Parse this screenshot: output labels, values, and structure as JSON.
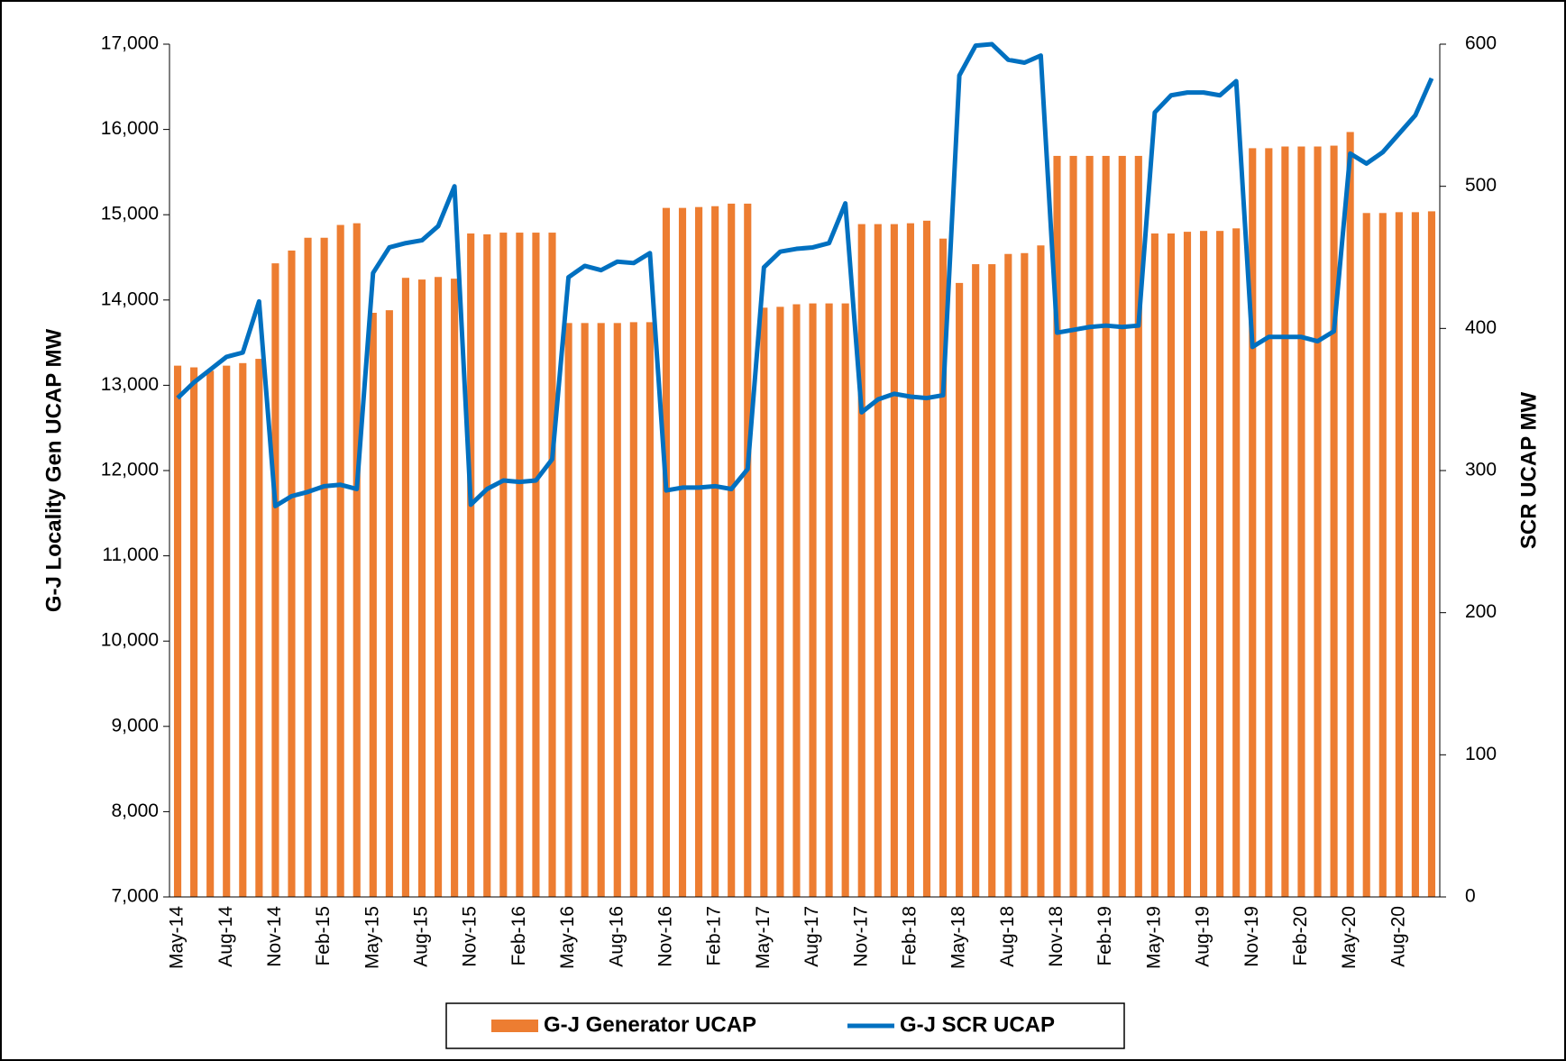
{
  "chart_data": {
    "type": "bar-line",
    "y_label": "G-J Locality Gen UCAP MW",
    "y2_label": "SCR UCAP MW",
    "categories": [
      "May-14",
      null,
      null,
      "Aug-14",
      null,
      null,
      "Nov-14",
      null,
      null,
      "Feb-15",
      null,
      null,
      "May-15",
      null,
      null,
      "Aug-15",
      null,
      null,
      "Nov-15",
      null,
      null,
      "Feb-16",
      null,
      null,
      "May-16",
      null,
      null,
      "Aug-16",
      null,
      null,
      "Nov-16",
      null,
      null,
      "Feb-17",
      null,
      null,
      "May-17",
      null,
      null,
      "Aug-17",
      null,
      null,
      "Nov-17",
      null,
      null,
      "Feb-18",
      null,
      null,
      "May-18",
      null,
      null,
      "Aug-18",
      null,
      null,
      "Nov-18",
      null,
      null,
      "Feb-19",
      null,
      null,
      "May-19",
      null,
      null,
      "Aug-19",
      null,
      null,
      "Nov-19",
      null,
      null,
      "Feb-20",
      null,
      null,
      "May-20",
      null,
      null,
      "Aug-20",
      null,
      null
    ],
    "series": [
      {
        "name": "G-J Generator UCAP",
        "type": "bar",
        "color": "#ED7D31",
        "values": [
          13230,
          13210,
          13170,
          13230,
          13260,
          13310,
          14430,
          14580,
          14730,
          14730,
          14880,
          14900,
          13850,
          13880,
          14260,
          14240,
          14270,
          14250,
          14780,
          14770,
          14790,
          14790,
          14790,
          14790,
          13730,
          13730,
          13730,
          13730,
          13740,
          13740,
          15080,
          15080,
          15090,
          15100,
          15130,
          15130,
          13910,
          13920,
          13950,
          13960,
          13960,
          13960,
          14890,
          14890,
          14890,
          14900,
          14930,
          14720,
          14200,
          14420,
          14420,
          14540,
          14550,
          14640,
          15690,
          15690,
          15690,
          15690,
          15690,
          15690,
          14780,
          14780,
          14800,
          14810,
          14810,
          14840,
          15780,
          15780,
          15800,
          15800,
          15800,
          15810,
          15970,
          15020,
          15020,
          15030,
          15030,
          15040
        ]
      },
      {
        "name": "G-J SCR UCAP",
        "type": "line",
        "axis": "y2",
        "color": "#0070C0",
        "values": [
          351,
          362,
          371,
          380,
          383,
          419,
          275,
          282,
          285,
          289,
          290,
          287,
          439,
          457,
          460,
          462,
          472,
          500,
          276,
          287,
          293,
          292,
          293,
          308,
          436,
          444,
          441,
          447,
          446,
          453,
          286,
          288,
          288,
          289,
          287,
          301,
          443,
          454,
          456,
          457,
          460,
          488,
          341,
          350,
          354,
          352,
          351,
          353,
          578,
          599,
          600,
          589,
          587,
          592,
          397,
          399,
          401,
          402,
          401,
          402,
          552,
          564,
          566,
          566,
          564,
          574,
          387,
          394,
          394,
          394,
          391,
          398,
          523,
          516,
          524,
          537,
          550,
          576
        ]
      }
    ],
    "ylim": [
      7000,
      17000
    ],
    "yticks": [
      {
        "value": 7000,
        "label": "7,000"
      },
      {
        "value": 8000,
        "label": "8,000"
      },
      {
        "value": 9000,
        "label": "9,000"
      },
      {
        "value": 10000,
        "label": "10,000"
      },
      {
        "value": 11000,
        "label": "11,000"
      },
      {
        "value": 12000,
        "label": "12,000"
      },
      {
        "value": 13000,
        "label": "13,000"
      },
      {
        "value": 14000,
        "label": "14,000"
      },
      {
        "value": 15000,
        "label": "15,000"
      },
      {
        "value": 16000,
        "label": "16,000"
      },
      {
        "value": 17000,
        "label": "17,000"
      }
    ],
    "y2lim": [
      0,
      600
    ],
    "y2ticks": [
      0,
      100,
      200,
      300,
      400,
      500,
      600
    ],
    "grid": false
  }
}
